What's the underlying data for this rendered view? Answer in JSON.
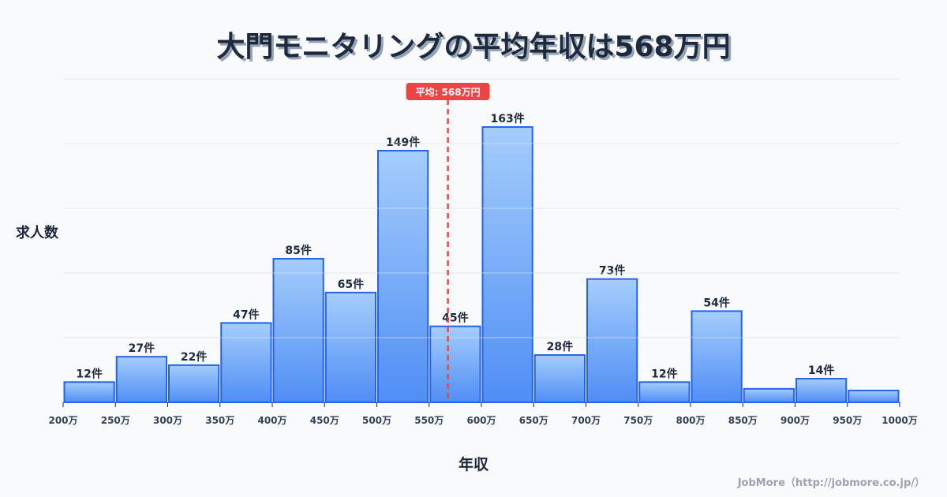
{
  "title": "大門モニタリングの平均年収は568万円",
  "ylabel": "求人数",
  "xlabel": "年収",
  "credit": "JobMore（http://jobmore.co.jp/）",
  "mean_label": "平均: 568万円",
  "colors": {
    "bar_top": "#a5cdfc",
    "bar_bottom": "#4f8ef5",
    "bar_stroke": "#2563eb",
    "mean_line": "#ef4444",
    "grid": "#e2e8f0",
    "text": "#1e293b"
  },
  "chart_data": {
    "type": "bar",
    "title": "大門モニタリングの平均年収は568万円",
    "xlabel": "年収",
    "ylabel": "求人数",
    "categories": [
      "200-250万",
      "250-300万",
      "300-350万",
      "350-400万",
      "400-450万",
      "450-500万",
      "500-550万",
      "550-600万",
      "600-650万",
      "650-700万",
      "700-750万",
      "750-800万",
      "800-850万",
      "850-900万",
      "900-950万",
      "950-1000万"
    ],
    "bin_edges": [
      200,
      250,
      300,
      350,
      400,
      450,
      500,
      550,
      600,
      650,
      700,
      750,
      800,
      850,
      900,
      950,
      1000
    ],
    "tick_labels": [
      "200万",
      "250万",
      "300万",
      "350万",
      "400万",
      "450万",
      "500万",
      "550万",
      "600万",
      "650万",
      "700万",
      "750万",
      "800万",
      "850万",
      "900万",
      "950万",
      "1000万"
    ],
    "values": [
      12,
      27,
      22,
      47,
      85,
      65,
      149,
      45,
      163,
      28,
      73,
      12,
      54,
      8,
      14,
      7
    ],
    "data_labels": [
      "12件",
      "27件",
      "22件",
      "47件",
      "85件",
      "65件",
      "149件",
      "45件",
      "163件",
      "28件",
      "73件",
      "12件",
      "54件",
      "",
      "14件",
      ""
    ],
    "mean": 568,
    "mean_annotation": "平均: 568万円",
    "ylim": [
      0,
      191.5
    ],
    "grid": true,
    "legend": null
  }
}
